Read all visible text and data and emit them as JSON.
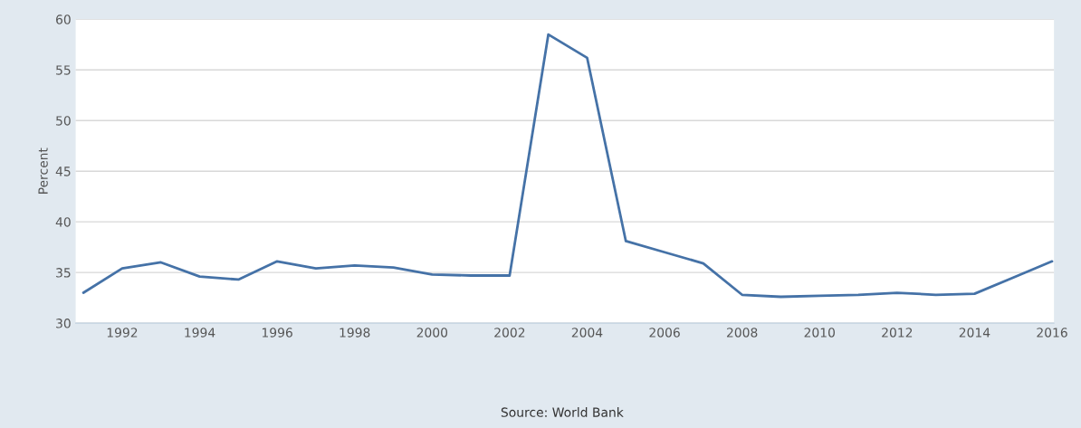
{
  "chart_data": {
    "type": "line",
    "ylabel": "Percent",
    "x": [
      1991,
      1992,
      1993,
      1994,
      1995,
      1996,
      1997,
      1998,
      1999,
      2000,
      2001,
      2002,
      2003,
      2004,
      2005,
      2006,
      2007,
      2008,
      2009,
      2010,
      2011,
      2012,
      2013,
      2014,
      2015,
      2016
    ],
    "series": [
      {
        "color": "#4572a7",
        "values": [
          33.0,
          35.4,
          36.0,
          34.6,
          34.3,
          36.1,
          35.4,
          35.7,
          35.5,
          34.8,
          34.7,
          34.7,
          58.5,
          56.2,
          38.1,
          37.0,
          35.9,
          32.8,
          32.6,
          32.7,
          32.8,
          33.0,
          32.8,
          32.9,
          34.5,
          36.1
        ]
      }
    ],
    "xlim": [
      1990.8,
      2016.05
    ],
    "xticks": [
      1992,
      1994,
      1996,
      1998,
      2000,
      2002,
      2004,
      2006,
      2008,
      2010,
      2012,
      2014,
      2016
    ],
    "ylim": [
      30,
      60
    ],
    "yticks": [
      30,
      35,
      40,
      45,
      50,
      55,
      60
    ],
    "grid": "y",
    "legend": false,
    "marker": "none",
    "line_style": "solid",
    "annotations": [
      "Source: World Bank"
    ]
  }
}
